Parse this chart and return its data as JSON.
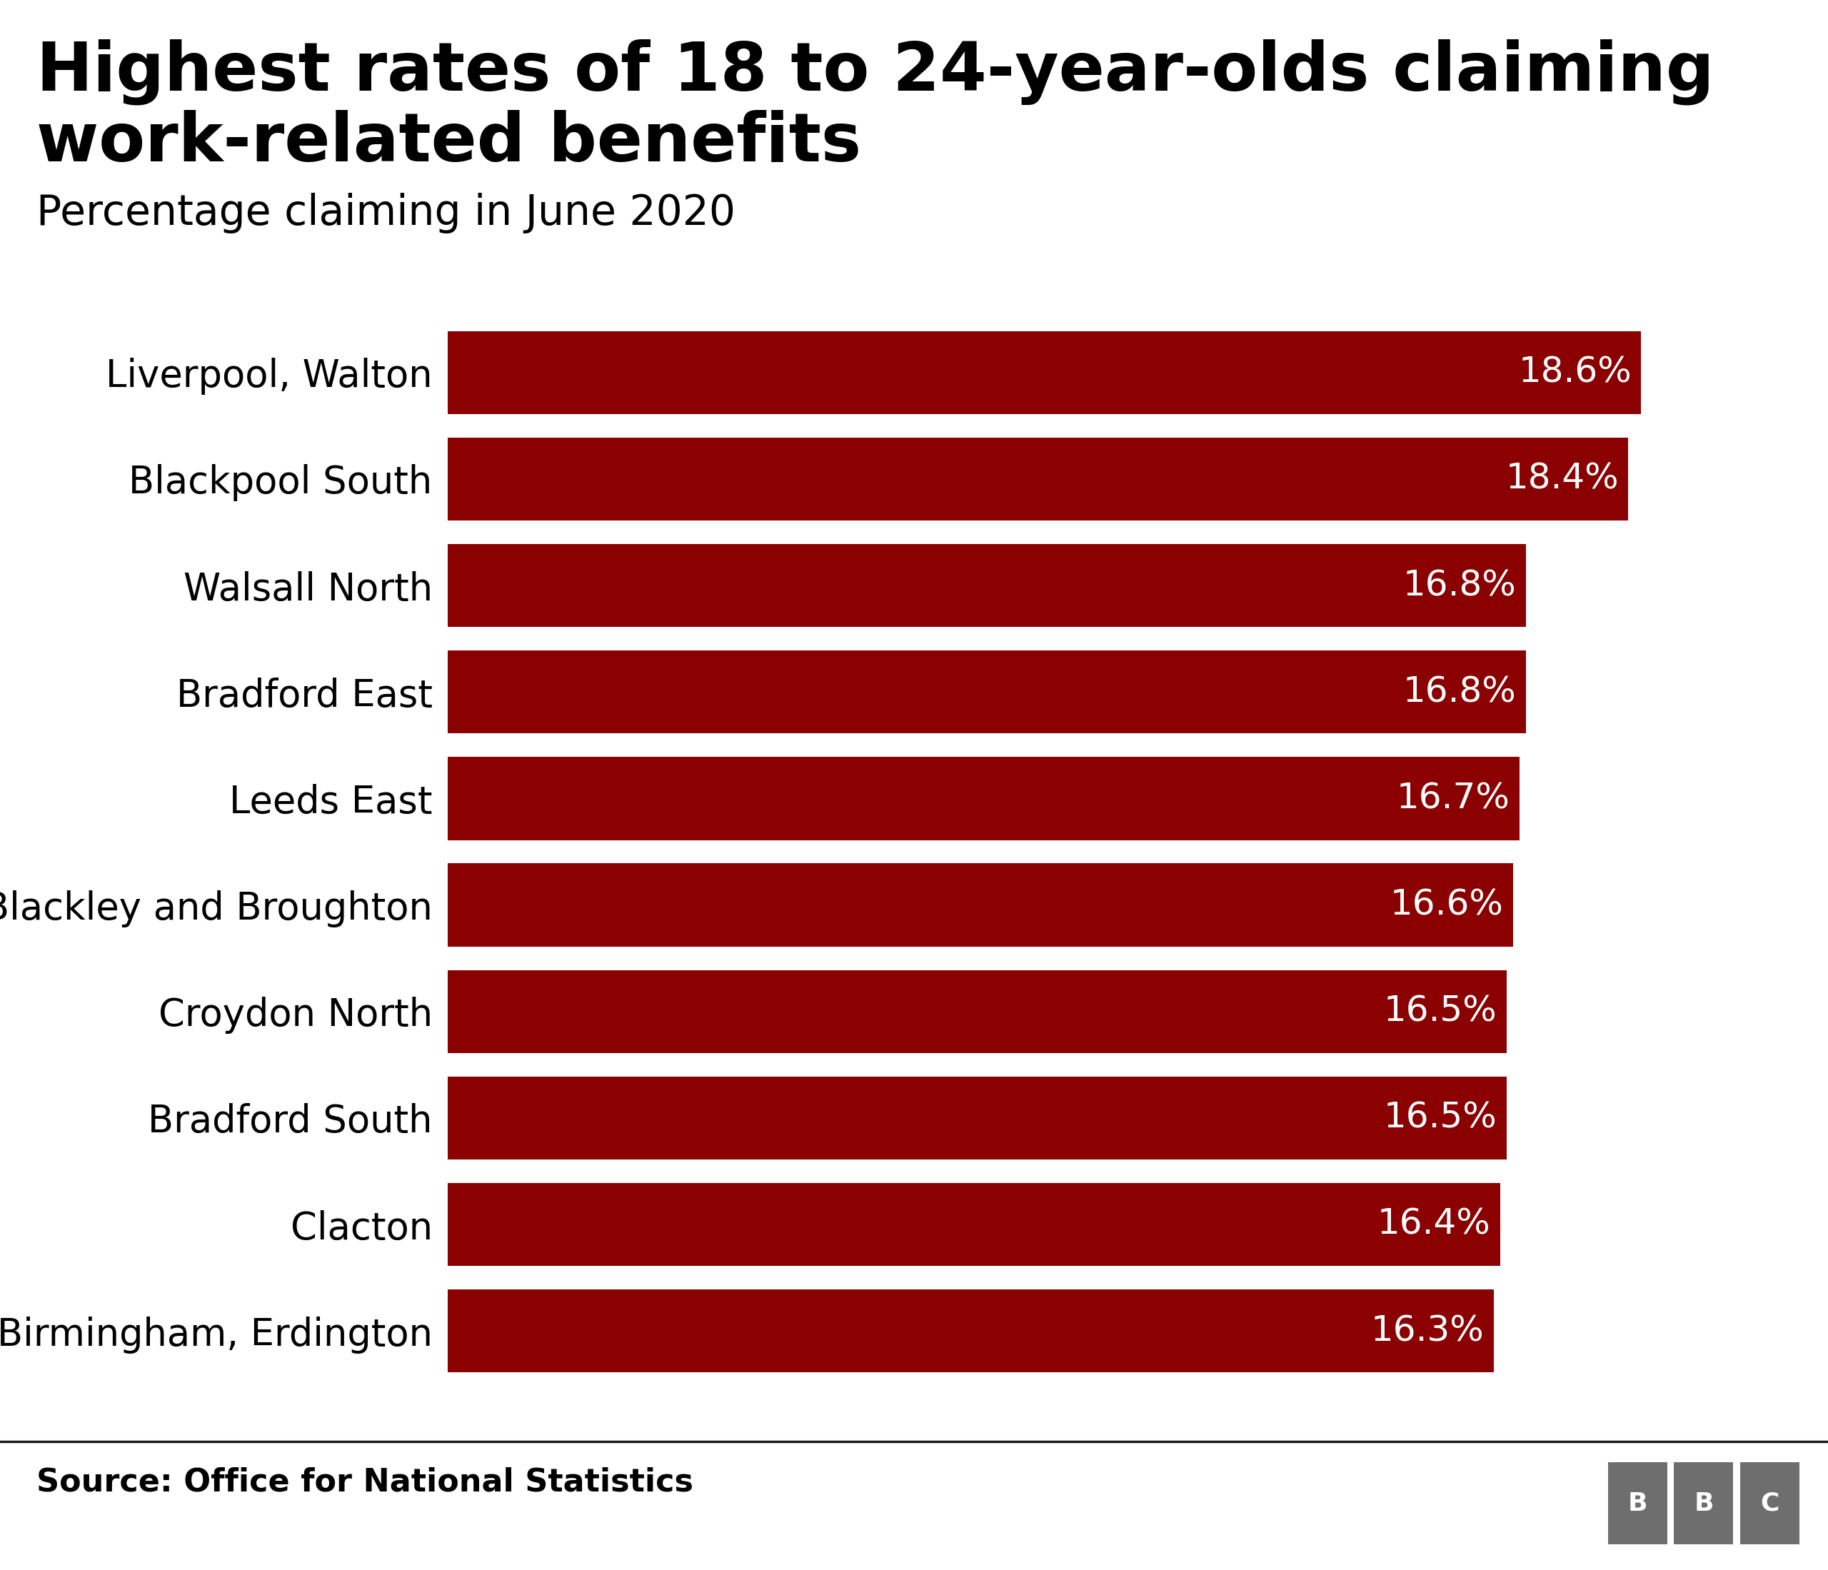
{
  "title_line1": "Highest rates of 18 to 24-year-olds claiming",
  "title_line2": "work-related benefits",
  "subtitle": "Percentage claiming in June 2020",
  "source": "Source: Office for National Statistics",
  "categories": [
    "Birmingham, Erdington",
    "Clacton",
    "Bradford South",
    "Croydon North",
    "Blackley and Broughton",
    "Leeds East",
    "Bradford East",
    "Walsall North",
    "Blackpool South",
    "Liverpool, Walton"
  ],
  "values": [
    16.3,
    16.4,
    16.5,
    16.5,
    16.6,
    16.7,
    16.8,
    16.8,
    18.4,
    18.6
  ],
  "labels": [
    "16.3%",
    "16.4%",
    "16.5%",
    "16.5%",
    "16.6%",
    "16.7%",
    "16.8%",
    "16.8%",
    "18.4%",
    "18.6%"
  ],
  "bar_color": "#8B0000",
  "background_color": "#ffffff",
  "text_color": "#000000",
  "label_color": "#ffffff",
  "bbc_box_color": "#6e6e6e",
  "separator_line_color": "#1a1a1a",
  "title_fontsize": 68,
  "subtitle_fontsize": 42,
  "label_fontsize": 36,
  "category_fontsize": 38,
  "source_fontsize": 32,
  "xlim": [
    0,
    20.8
  ]
}
